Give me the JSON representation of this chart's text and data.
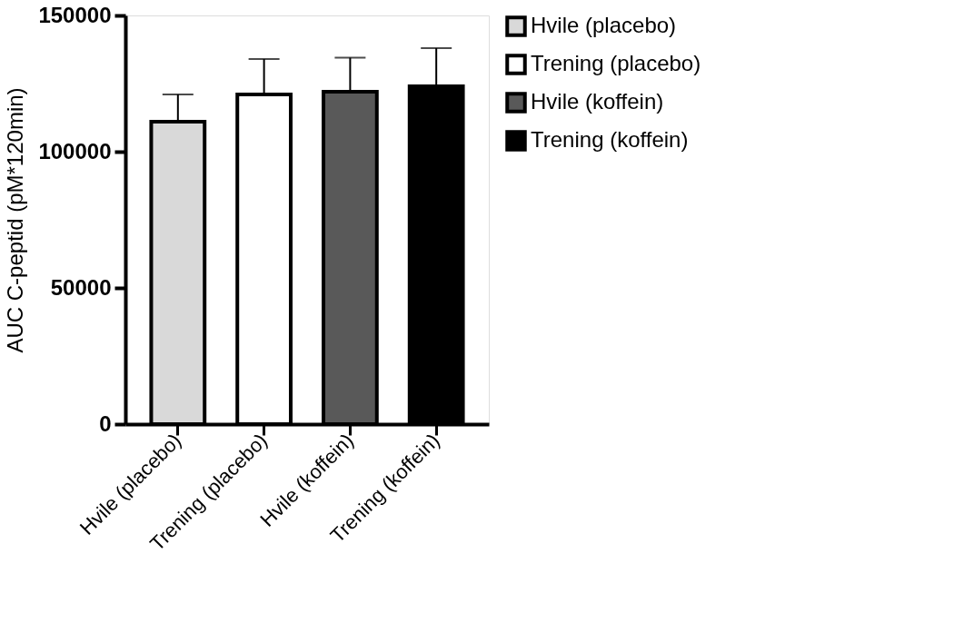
{
  "chart_data": {
    "type": "bar",
    "ylabel": "AUC C-peptid (pM*120min)",
    "categories": [
      "Hvile (placebo)",
      "Trening (placebo)",
      "Hvile (koffein)",
      "Trening (koffein)"
    ],
    "series": [
      {
        "name": "Hvile (placebo)",
        "color": "#d9d9d9",
        "values": [
          111000,
          null,
          null,
          null
        ],
        "errors": [
          [
            111000,
            121000
          ],
          null,
          null,
          null
        ]
      },
      {
        "name": "Trening (placebo)",
        "color": "#ffffff",
        "values": [
          null,
          121000,
          null,
          null
        ],
        "errors": [
          null,
          [
            121000,
            134000
          ],
          null,
          null
        ]
      },
      {
        "name": "Hvile (koffein)",
        "color": "#595959",
        "values": [
          null,
          null,
          122000,
          null
        ],
        "errors": [
          null,
          null,
          [
            122000,
            134500
          ],
          null
        ]
      },
      {
        "name": "Trening (koffein)",
        "color": "#000000",
        "values": [
          null,
          null,
          null,
          124000
        ],
        "errors": [
          null,
          null,
          null,
          [
            124000,
            138000
          ]
        ]
      }
    ],
    "ylim": [
      0,
      150000
    ],
    "yticks": [
      0,
      50000,
      100000,
      150000
    ],
    "grid": false,
    "legend": "top right"
  }
}
